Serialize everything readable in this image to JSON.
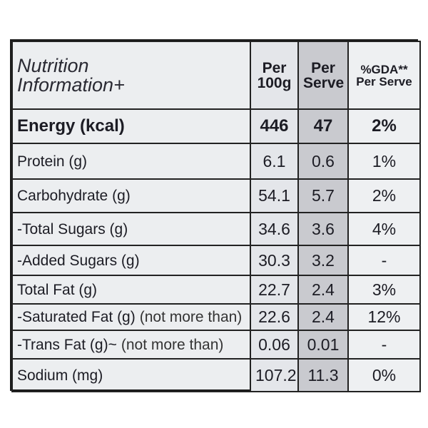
{
  "header": {
    "cells": [
      [
        "Nutrition",
        "Information+"
      ],
      [
        "Per",
        "100g"
      ],
      [
        "Per",
        "Serve"
      ],
      [
        "%GDA**",
        "Per Serve"
      ]
    ]
  },
  "rows": [
    {
      "name": "Energy (kcal)",
      "values": [
        "446",
        "47",
        "2%"
      ]
    },
    {
      "name": "Protein (g)",
      "values": [
        "6.1",
        "0.6",
        "1%"
      ]
    },
    {
      "name": "Carbohydrate (g)",
      "values": [
        "54.1",
        "5.7",
        "2%"
      ]
    },
    {
      "name": "-Total Sugars (g)",
      "values": [
        "34.6",
        "3.6",
        "4%"
      ]
    },
    {
      "name": "-Added Sugars (g)",
      "values": [
        "30.3",
        "3.2",
        "-"
      ]
    },
    {
      "name": "Total Fat (g)",
      "values": [
        "22.7",
        "2.4",
        "3%"
      ]
    },
    {
      "name": "-Saturated Fat (g)",
      "note": "(not more than)",
      "values": [
        "22.6",
        "2.4",
        "12%"
      ]
    },
    {
      "name": "-Trans Fat (g)~",
      "note": "(not more than)",
      "values": [
        "0.06",
        "0.01",
        "-"
      ]
    },
    {
      "name": "Sodium (mg)",
      "values": [
        "107.2",
        "11.3",
        "0%"
      ]
    }
  ]
}
